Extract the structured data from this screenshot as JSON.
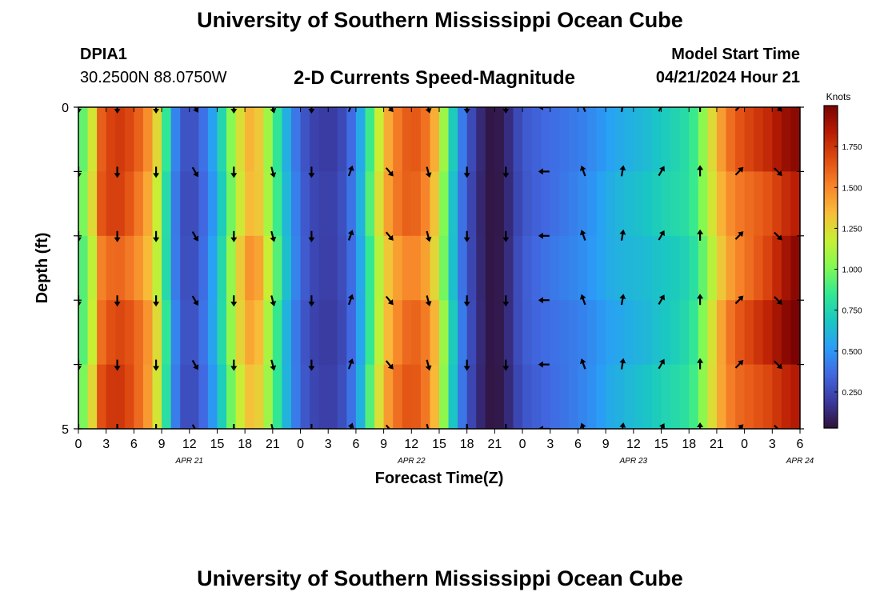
{
  "header": {
    "title": "University of Southern Mississippi Ocean Cube",
    "station_id": "DPIA1",
    "station_coords": "30.2500N  88.0750W",
    "subtitle": "2-D Currents Speed-Magnitude",
    "model_start_label": "Model Start Time",
    "model_start_value": "04/21/2024 Hour 21"
  },
  "footer": {
    "title": "University of Southern Mississippi Ocean Cube"
  },
  "colors": {
    "stops": [
      "#30123b",
      "#3a3aa0",
      "#4168e1",
      "#2a9ef7",
      "#1ac7c2",
      "#33e892",
      "#83f953",
      "#c8ef34",
      "#f8bd39",
      "#f7852a",
      "#e04d12",
      "#b81c04",
      "#7a0403"
    ]
  },
  "chart_data": {
    "type": "heatmap",
    "title": "2-D Currents Speed-Magnitude",
    "xlabel": "Forecast Time(Z)",
    "ylabel": "Depth (ft)",
    "x_tick_labels": [
      "0",
      "3",
      "6",
      "9",
      "12",
      "15",
      "18",
      "21",
      "0",
      "3",
      "6",
      "9",
      "12",
      "15",
      "18",
      "21",
      "0",
      "3",
      "6",
      "9",
      "12",
      "15",
      "18",
      "21",
      "0",
      "3",
      "6"
    ],
    "date_labels": [
      {
        "label": "APR 21",
        "hour": 12
      },
      {
        "label": "APR 22",
        "hour": 36
      },
      {
        "label": "APR 23",
        "hour": 60
      },
      {
        "label": "APR 24",
        "hour": 78
      }
    ],
    "y_tick_labels": [
      "0",
      "5"
    ],
    "ylim": [
      0,
      5
    ],
    "x_range_hours": [
      0,
      78
    ],
    "colorbar": {
      "label": "Knots",
      "ticks": [
        "1.750",
        "1.500",
        "1.250",
        "1.000",
        "0.750",
        "0.500",
        "0.250"
      ],
      "tick_values": [
        1.75,
        1.5,
        1.25,
        1.0,
        0.75,
        0.5,
        0.25
      ],
      "range": [
        0.03,
        2.0
      ]
    },
    "speed_profile": {
      "hours": [
        0,
        1,
        2,
        4,
        6,
        8,
        9,
        10,
        11,
        12,
        13,
        14,
        15,
        16,
        17,
        18,
        19,
        20,
        21,
        22,
        23,
        24,
        25,
        26,
        27,
        28,
        29,
        30,
        31,
        32,
        33,
        34,
        35,
        36,
        37,
        38,
        39,
        40,
        41,
        42,
        43,
        44,
        45,
        46,
        47,
        48,
        49,
        50,
        51,
        52,
        53,
        54,
        56,
        57,
        58,
        59,
        60,
        61,
        62,
        63,
        64,
        65,
        66,
        67,
        68,
        69,
        70,
        71,
        72,
        73,
        74,
        75,
        76,
        78
      ],
      "knots": [
        1.05,
        0.85,
        1.55,
        1.7,
        1.6,
        1.35,
        1.05,
        0.55,
        0.3,
        0.25,
        0.3,
        0.45,
        0.6,
        0.9,
        1.15,
        1.35,
        1.45,
        1.25,
        1.0,
        0.75,
        0.5,
        0.35,
        0.25,
        0.22,
        0.2,
        0.22,
        0.3,
        0.45,
        0.7,
        1.05,
        1.3,
        1.45,
        1.55,
        1.6,
        1.55,
        1.45,
        1.2,
        0.85,
        0.5,
        0.3,
        0.18,
        0.06,
        0.04,
        0.08,
        0.2,
        0.3,
        0.33,
        0.36,
        0.38,
        0.4,
        0.42,
        0.44,
        0.5,
        0.55,
        0.58,
        0.6,
        0.62,
        0.64,
        0.66,
        0.7,
        0.72,
        0.75,
        0.78,
        0.9,
        1.1,
        1.3,
        1.45,
        1.55,
        1.6,
        1.65,
        1.7,
        1.75,
        1.85,
        1.95
      ]
    },
    "arrows": {
      "hours": [
        0,
        4.2,
        8.4,
        12.6,
        16.8,
        21,
        25.2,
        29.4,
        33.6,
        37.8,
        42,
        46.2,
        50.4,
        54.6,
        58.8,
        63,
        67.2,
        71.4,
        75.6
      ],
      "depths_ft": [
        0,
        1,
        2,
        3,
        4,
        5
      ],
      "direction_deg": [
        180,
        180,
        180,
        150,
        180,
        165,
        180,
        20,
        140,
        165,
        180,
        180,
        270,
        340,
        10,
        30,
        0,
        45,
        135
      ]
    }
  }
}
